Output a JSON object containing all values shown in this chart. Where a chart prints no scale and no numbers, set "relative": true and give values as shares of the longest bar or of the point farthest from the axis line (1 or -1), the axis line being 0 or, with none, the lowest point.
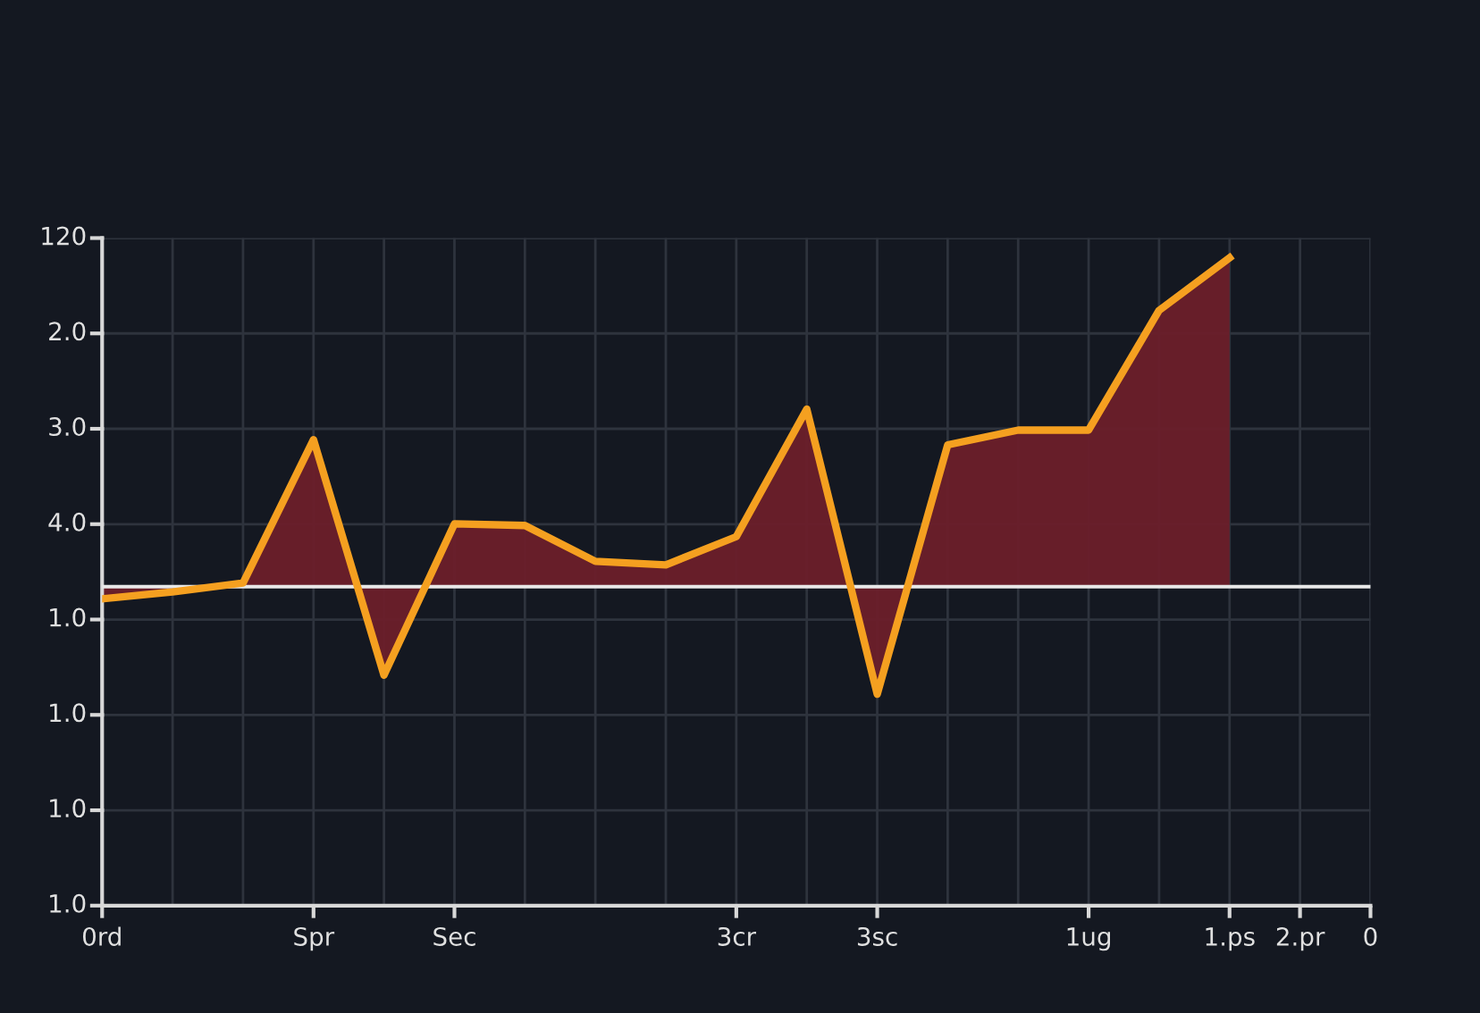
{
  "chart_data": {
    "type": "area",
    "relative": true,
    "categories": [
      "0rd",
      null,
      null,
      "Spr",
      null,
      "Sec",
      null,
      null,
      null,
      "3cr",
      null,
      "3sc",
      null,
      null,
      "1ug",
      null,
      "1.ps",
      "2.pr",
      "0"
    ],
    "series": [
      {
        "color": "#f5a020",
        "values": [
          -0.037,
          -0.016,
          0.011,
          0.447,
          -0.269,
          0.191,
          0.186,
          0.077,
          0.066,
          0.152,
          0.54,
          -0.327,
          0.431,
          0.476,
          0.476,
          0.84,
          1,
          null,
          null
        ]
      }
    ],
    "annotations": [
      "1.0",
      "1.0",
      "1.0",
      "1.0",
      "4.0",
      "3.0",
      "2.0",
      "120"
    ],
    "ref_lines": [
      {
        "axis": "y",
        "value": 0,
        "color": "#e8e8e8"
      }
    ],
    "grid": true
  }
}
